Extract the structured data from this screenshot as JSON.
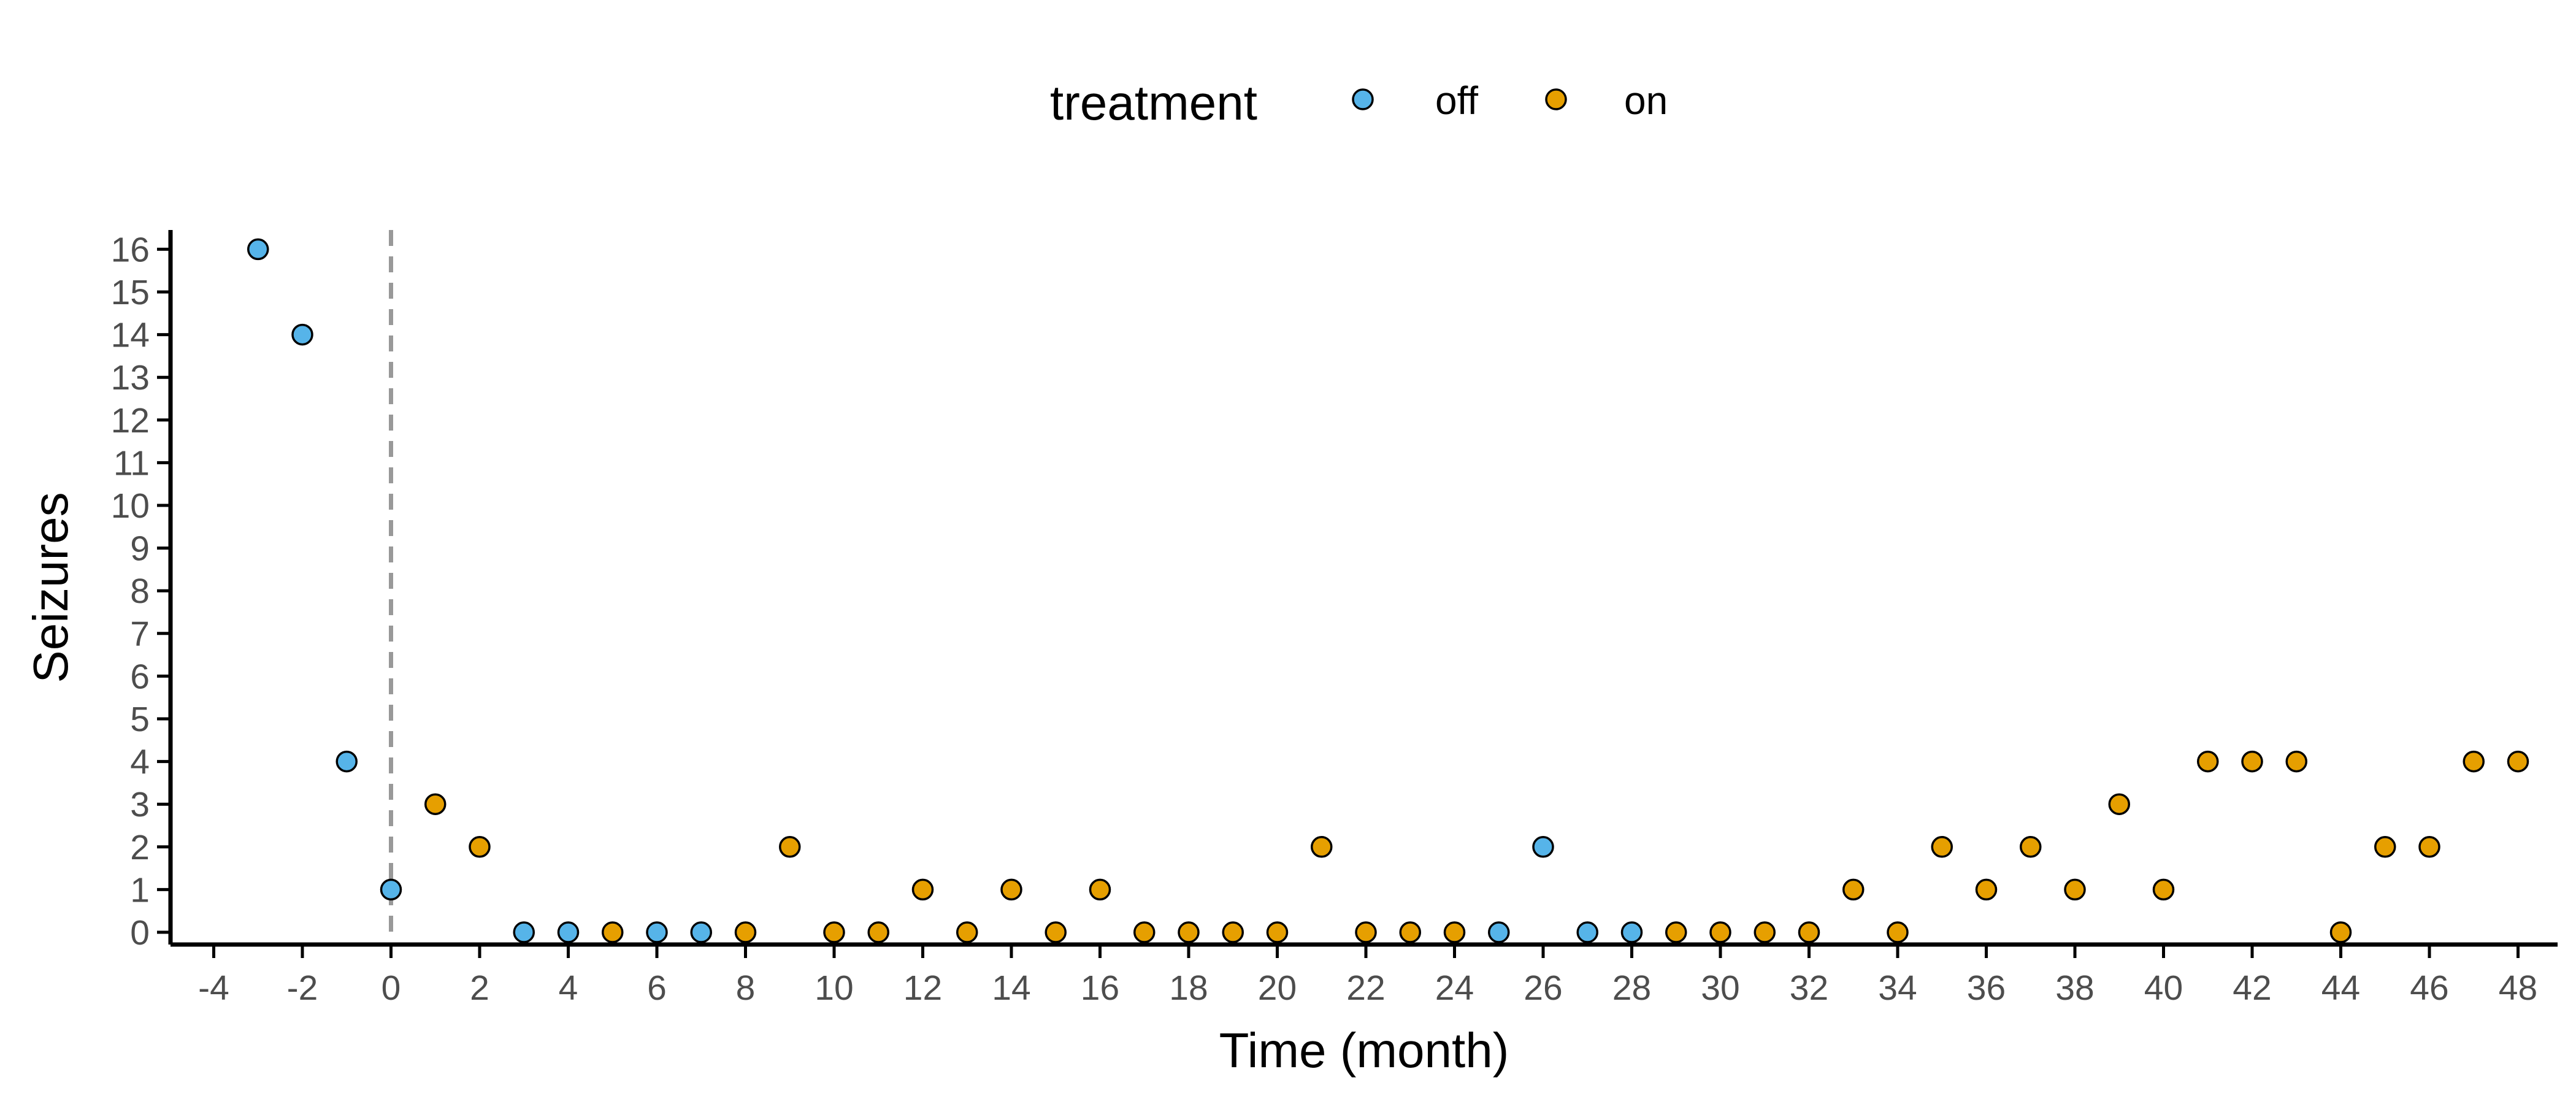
{
  "chart_data": {
    "type": "scatter",
    "xlabel": "Time (month)",
    "ylabel": "Seizures",
    "xlim": [
      -5,
      49
    ],
    "ylim": [
      -0.25,
      16.5
    ],
    "x_ticks": [
      -4,
      -2,
      0,
      2,
      4,
      6,
      8,
      10,
      12,
      14,
      16,
      18,
      20,
      22,
      24,
      26,
      28,
      30,
      32,
      34,
      36,
      38,
      40,
      42,
      44,
      46,
      48
    ],
    "y_ticks": [
      0,
      1,
      2,
      3,
      4,
      5,
      6,
      7,
      8,
      9,
      10,
      11,
      12,
      13,
      14,
      15,
      16
    ],
    "grid": false,
    "reference_line": {
      "x": 0,
      "style": "dashed",
      "color": "#999999"
    },
    "legend": {
      "title": "treatment",
      "position": "top",
      "entries": [
        {
          "label": "off",
          "color": "#56B4E9"
        },
        {
          "label": "on",
          "color": "#E69F00"
        }
      ]
    },
    "series": [
      {
        "name": "off",
        "color": "#56B4E9",
        "points": [
          {
            "x": -3,
            "y": 16
          },
          {
            "x": -2,
            "y": 14
          },
          {
            "x": -1,
            "y": 4
          },
          {
            "x": 0,
            "y": 1
          },
          {
            "x": 3,
            "y": 0
          },
          {
            "x": 4,
            "y": 0
          },
          {
            "x": 6,
            "y": 0
          },
          {
            "x": 7,
            "y": 0
          },
          {
            "x": 25,
            "y": 0
          },
          {
            "x": 26,
            "y": 2
          },
          {
            "x": 27,
            "y": 0
          },
          {
            "x": 28,
            "y": 0
          }
        ]
      },
      {
        "name": "on",
        "color": "#E69F00",
        "points": [
          {
            "x": 1,
            "y": 3
          },
          {
            "x": 2,
            "y": 2
          },
          {
            "x": 5,
            "y": 0
          },
          {
            "x": 8,
            "y": 0
          },
          {
            "x": 9,
            "y": 2
          },
          {
            "x": 10,
            "y": 0
          },
          {
            "x": 11,
            "y": 0
          },
          {
            "x": 12,
            "y": 1
          },
          {
            "x": 13,
            "y": 0
          },
          {
            "x": 14,
            "y": 1
          },
          {
            "x": 15,
            "y": 0
          },
          {
            "x": 16,
            "y": 1
          },
          {
            "x": 17,
            "y": 0
          },
          {
            "x": 18,
            "y": 0
          },
          {
            "x": 19,
            "y": 0
          },
          {
            "x": 20,
            "y": 0
          },
          {
            "x": 21,
            "y": 2
          },
          {
            "x": 22,
            "y": 0
          },
          {
            "x": 23,
            "y": 0
          },
          {
            "x": 24,
            "y": 0
          },
          {
            "x": 29,
            "y": 0
          },
          {
            "x": 30,
            "y": 0
          },
          {
            "x": 31,
            "y": 0
          },
          {
            "x": 32,
            "y": 0
          },
          {
            "x": 33,
            "y": 1
          },
          {
            "x": 34,
            "y": 0
          },
          {
            "x": 35,
            "y": 2
          },
          {
            "x": 36,
            "y": 1
          },
          {
            "x": 37,
            "y": 2
          },
          {
            "x": 38,
            "y": 1
          },
          {
            "x": 39,
            "y": 3
          },
          {
            "x": 40,
            "y": 1
          },
          {
            "x": 41,
            "y": 4
          },
          {
            "x": 42,
            "y": 4
          },
          {
            "x": 43,
            "y": 4
          },
          {
            "x": 44,
            "y": 0
          },
          {
            "x": 45,
            "y": 2
          },
          {
            "x": 46,
            "y": 2
          },
          {
            "x": 47,
            "y": 4
          },
          {
            "x": 48,
            "y": 4
          }
        ]
      }
    ]
  }
}
